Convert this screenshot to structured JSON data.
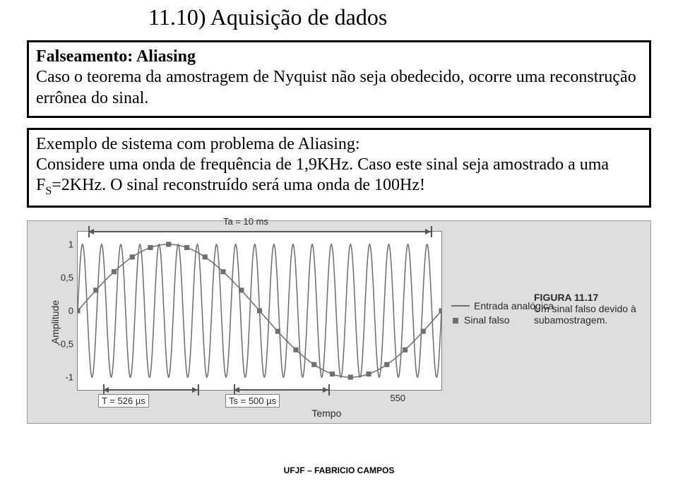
{
  "title": "11.10) Aquisição de dados",
  "box1": {
    "heading": "Falseamento: Aliasing",
    "line1": "Caso o teorema da amostragem de Nyquist não seja obedecido, ocorre uma reconstrução errônea do sinal."
  },
  "box2": {
    "line1": "Exemplo de sistema com problema de Aliasing:",
    "line2a": "Considere uma onda de frequência de 1,9KHz. Caso este sinal seja amostrado a uma F",
    "line2sub": "S",
    "line2b": "=2KHz. O sinal reconstruído será uma onda de 100Hz!"
  },
  "chart": {
    "type": "line",
    "background_color": "#dedede",
    "plot_bg": "#ffffff",
    "border_color": "#808080",
    "yaxis_label": "Amplitude",
    "xaxis_label": "Tempo",
    "yticks": [
      {
        "v": 1,
        "label": "1"
      },
      {
        "v": 0.5,
        "label": "0,5"
      },
      {
        "v": 0,
        "label": "0"
      },
      {
        "v": -0.5,
        "label": "-0,5"
      },
      {
        "v": -1,
        "label": "-1"
      }
    ],
    "ylim": [
      -1.2,
      1.2
    ],
    "xtick_single": {
      "pos_frac": 0.88,
      "label": "550"
    },
    "analog": {
      "color": "#6f6f6f",
      "stroke_width": 1.5,
      "cycles": 19,
      "amplitude": 1
    },
    "alias": {
      "color": "#6f6f6f",
      "marker": "square",
      "marker_size": 7,
      "stroke_width": 1.5,
      "cycles": 1,
      "amplitude": 1,
      "samples": 20
    },
    "annotations": {
      "Ta": "Ta = 10 ms",
      "T": "T = 526 µs",
      "Ts": "Ts = 500 µs"
    },
    "legend": {
      "entry1": "Entrada analógica",
      "entry2": "Sinal falso"
    },
    "caption": {
      "fig_no": "FIGURA 11.17",
      "text": "Um sinal falso devido à subamostragem."
    }
  },
  "footer": "UFJF – FABRICIO CAMPOS"
}
